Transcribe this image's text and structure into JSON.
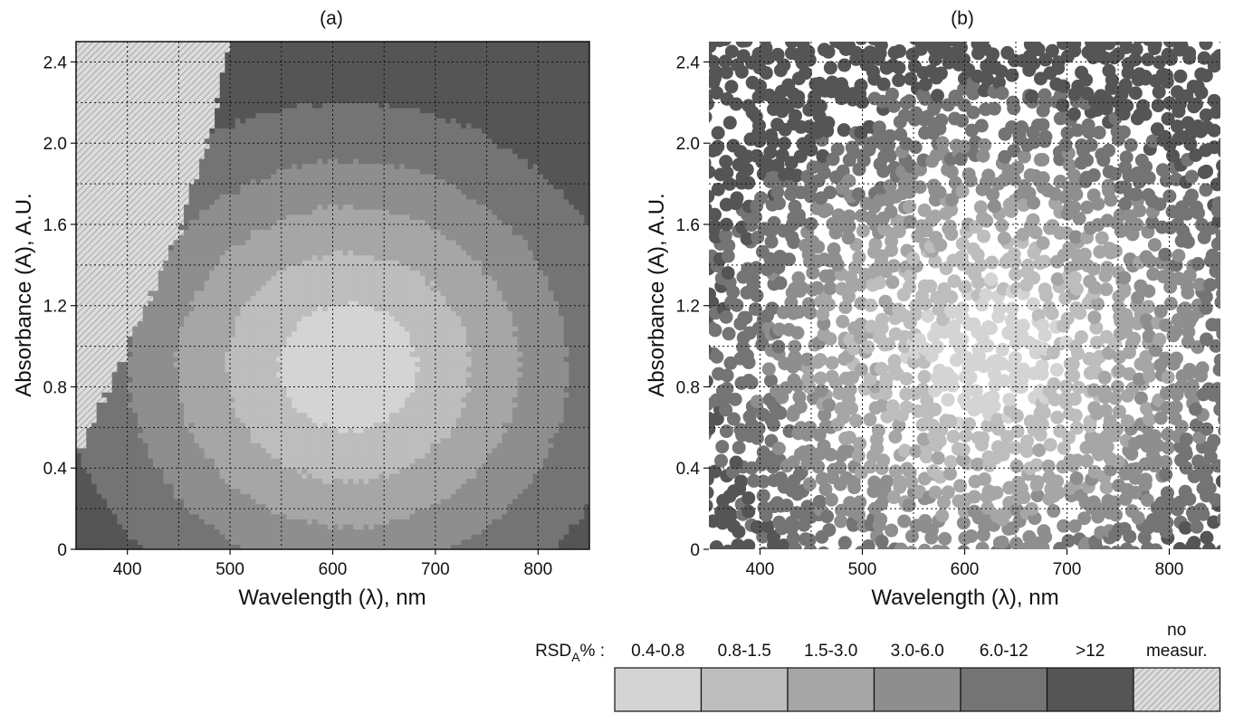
{
  "chart_data": [
    {
      "type": "heatmap",
      "panel_title": "(a)",
      "xlabel": "Wavelength (λ),  nm",
      "ylabel": "Absorbance (A),  A.U.",
      "xlim": [
        350,
        850
      ],
      "ylim": [
        0,
        2.5
      ],
      "x_ticks": [
        400,
        500,
        600,
        700,
        800
      ],
      "x_tick_labels": [
        "400",
        "500",
        "600",
        "700",
        "800"
      ],
      "y_ticks": [
        0,
        0.4,
        0.8,
        1.2,
        1.6,
        2.0,
        2.4
      ],
      "y_tick_labels": [
        "0",
        "0.4",
        "0.8",
        "1.2",
        "1.6",
        "2.0",
        "2.4"
      ],
      "grid_x_step": 50,
      "grid_y_step": 0.2,
      "grid": true,
      "value_model": {
        "description_of_regions": "RSD minimum near λ≈615 nm, A≈0.9; error rises with distance; no-measurement region above the left boundary",
        "center": [
          615,
          0.9
        ],
        "scale": [
          95,
          0.45
        ],
        "class_thresholds": [
          0.7,
          1.25,
          1.75,
          2.25,
          2.9
        ],
        "no_measure_boundary": {
          "lambda": [
            350,
            400,
            450,
            480,
            500
          ],
          "absorbance": [
            0.45,
            1.0,
            1.55,
            2.05,
            2.5
          ]
        }
      }
    },
    {
      "type": "scatter",
      "panel_title": "(b)",
      "xlabel": "Wavelength (λ),  nm",
      "ylabel": "Absorbance (A),  A.U.",
      "xlim": [
        350,
        850
      ],
      "ylim": [
        0,
        2.5
      ],
      "x_ticks": [
        400,
        500,
        600,
        700,
        800
      ],
      "x_tick_labels": [
        "400",
        "500",
        "600",
        "700",
        "800"
      ],
      "y_ticks": [
        0,
        0.4,
        0.8,
        1.2,
        1.6,
        2.0,
        2.4
      ],
      "y_tick_labels": [
        "0",
        "0.4",
        "0.8",
        "1.2",
        "1.6",
        "2.0",
        "2.4"
      ],
      "grid_x_step": 50,
      "grid_y_step": 0.2,
      "grid": true,
      "value_model": {
        "description_of_regions": "scattered measurement points colored by RSD class, same pattern as (a) with noise",
        "center": [
          620,
          0.95
        ],
        "scale": [
          95,
          0.45
        ],
        "class_thresholds": [
          0.7,
          1.25,
          1.75,
          2.25,
          2.9
        ],
        "grid_step": [
          10,
          0.05
        ],
        "fill_probability": 0.72
      }
    }
  ],
  "legend": {
    "label": "RSD",
    "subscript": "A",
    "suffix": "% :",
    "classes": [
      {
        "range": "0.4-0.8",
        "color": "#d4d4d4"
      },
      {
        "range": "0.8-1.5",
        "color": "#bdbdbd"
      },
      {
        "range": "1.5-3.0",
        "color": "#a6a6a6"
      },
      {
        "range": "3.0-6.0",
        "color": "#8e8e8e"
      },
      {
        "range": "6.0-12",
        "color": "#747474"
      },
      {
        "range": ">12",
        "color": "#555555"
      },
      {
        "range": "no\nmeasur.",
        "color": "#c8c8c8",
        "pattern": "hatched"
      }
    ]
  }
}
